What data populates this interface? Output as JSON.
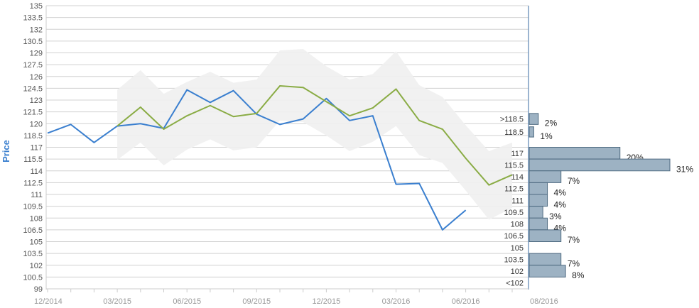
{
  "chart_data": {
    "type": "line",
    "ylabel": "Price",
    "ylim": [
      99,
      135
    ],
    "y_ticks": [
      "135",
      "133.5",
      "132",
      "130.5",
      "129",
      "127.5",
      "126",
      "124.5",
      "123",
      "121.5",
      "120",
      "118.5",
      "117",
      "115.5",
      "114",
      "112.5",
      "111",
      "109.5",
      "108",
      "106.5",
      "105",
      "103.5",
      "102",
      "100.5",
      "99"
    ],
    "x_ticks": [
      "12/2014",
      "03/2015",
      "06/2015",
      "09/2015",
      "12/2015",
      "03/2016",
      "06/2016",
      "08/2016"
    ],
    "grid": true,
    "series": [
      {
        "role": "price",
        "color": "#3a7fcf",
        "points": [
          [
            "12/2014",
            118.8
          ],
          [
            "01/2015",
            119.9
          ],
          [
            "02/2015",
            117.6
          ],
          [
            "03/2015",
            119.7
          ],
          [
            "04/2015",
            120.0
          ],
          [
            "05/2015",
            119.4
          ],
          [
            "06/2015",
            124.3
          ],
          [
            "07/2015",
            122.7
          ],
          [
            "08/2015",
            124.2
          ],
          [
            "09/2015",
            121.2
          ],
          [
            "10/2015",
            119.9
          ],
          [
            "11/2015",
            120.6
          ],
          [
            "12/2015",
            123.2
          ],
          [
            "01/2016",
            120.4
          ],
          [
            "02/2016",
            121.0
          ],
          [
            "03/2016",
            112.3
          ],
          [
            "04/2016",
            112.4
          ],
          [
            "05/2016",
            106.5
          ],
          [
            "06/2016",
            109.0
          ]
        ]
      },
      {
        "role": "target",
        "color": "#8aac45",
        "points": [
          [
            "03/2015",
            119.7
          ],
          [
            "04/2015",
            122.1
          ],
          [
            "05/2015",
            119.3
          ],
          [
            "06/2015",
            121.0
          ],
          [
            "07/2015",
            122.3
          ],
          [
            "08/2015",
            120.9
          ],
          [
            "09/2015",
            121.3
          ],
          [
            "10/2015",
            124.8
          ],
          [
            "11/2015",
            124.6
          ],
          [
            "12/2015",
            122.8
          ],
          [
            "01/2016",
            121.0
          ],
          [
            "02/2016",
            122.0
          ],
          [
            "03/2016",
            124.4
          ],
          [
            "04/2016",
            120.4
          ],
          [
            "05/2016",
            119.3
          ],
          [
            "06/2016",
            115.6
          ],
          [
            "07/2016",
            112.2
          ],
          [
            "08/2016",
            113.5
          ]
        ]
      }
    ],
    "band": {
      "color": "#efefef",
      "upper": [
        [
          "03/2015",
          124.3
        ],
        [
          "04/2015",
          126.8
        ],
        [
          "05/2015",
          123.8
        ],
        [
          "06/2015",
          125.3
        ],
        [
          "07/2015",
          126.6
        ],
        [
          "08/2015",
          125.2
        ],
        [
          "09/2015",
          125.6
        ],
        [
          "10/2015",
          129.3
        ],
        [
          "11/2015",
          129.5
        ],
        [
          "12/2015",
          127.3
        ],
        [
          "01/2016",
          125.6
        ],
        [
          "02/2016",
          126.3
        ],
        [
          "03/2016",
          129.2
        ],
        [
          "04/2016",
          124.9
        ],
        [
          "05/2016",
          123.4
        ],
        [
          "06/2016",
          119.8
        ],
        [
          "07/2016",
          116.5
        ],
        [
          "08/2016",
          117.6
        ]
      ],
      "lower": [
        [
          "03/2015",
          115.4
        ],
        [
          "04/2015",
          117.6
        ],
        [
          "05/2015",
          114.7
        ],
        [
          "06/2015",
          116.7
        ],
        [
          "07/2015",
          118.0
        ],
        [
          "08/2015",
          116.6
        ],
        [
          "09/2015",
          117.0
        ],
        [
          "10/2015",
          120.4
        ],
        [
          "11/2015",
          120.2
        ],
        [
          "12/2015",
          118.5
        ],
        [
          "01/2016",
          116.5
        ],
        [
          "02/2016",
          117.7
        ],
        [
          "03/2016",
          119.7
        ],
        [
          "04/2016",
          116.0
        ],
        [
          "05/2016",
          115.0
        ],
        [
          "06/2016",
          111.5
        ],
        [
          "07/2016",
          107.8
        ],
        [
          "08/2016",
          109.3
        ]
      ]
    },
    "distribution": {
      "color": "#9db2c3",
      "bins": [
        {
          "label": ">118.5",
          "pct": 2,
          "text": "2%",
          "y_high": 121.3,
          "y_low": 119.9
        },
        {
          "label": "118.5",
          "pct": 1,
          "text": "1%",
          "y_high": 119.6,
          "y_low": 118.3
        },
        {
          "label": "117",
          "pct": 20,
          "text": "20%",
          "y_high": 117.0,
          "y_low": 115.5
        },
        {
          "label": "115.5",
          "pct": 31,
          "text": "31%",
          "y_high": 115.5,
          "y_low": 114.0
        },
        {
          "label": "114",
          "pct": 7,
          "text": "7%",
          "y_high": 114.0,
          "y_low": 112.5
        },
        {
          "label": "112.5",
          "pct": 4,
          "text": "4%",
          "y_high": 112.5,
          "y_low": 111.0
        },
        {
          "label": "111",
          "pct": 4,
          "text": "4%",
          "y_high": 111.0,
          "y_low": 109.5
        },
        {
          "label": "109.5",
          "pct": 3,
          "text": "3%",
          "y_high": 109.5,
          "y_low": 108.0
        },
        {
          "label": "108",
          "pct": 4,
          "text": "4%",
          "y_high": 108.0,
          "y_low": 106.5
        },
        {
          "label": "106.5",
          "pct": 7,
          "text": "7%",
          "y_high": 106.5,
          "y_low": 105.0
        },
        {
          "label": "105",
          "pct": 0,
          "text": "",
          "y_high": 105.0,
          "y_low": 103.5
        },
        {
          "label": "103.5",
          "pct": 7,
          "text": "7%",
          "y_high": 103.5,
          "y_low": 102.0
        },
        {
          "label": "102",
          "pct": 8,
          "text": "8%",
          "y_high": 102.0,
          "y_low": 100.5
        },
        {
          "label": "<102",
          "pct": 0,
          "text": "",
          "y_high": 100.5,
          "y_low": 99.0
        }
      ]
    }
  }
}
